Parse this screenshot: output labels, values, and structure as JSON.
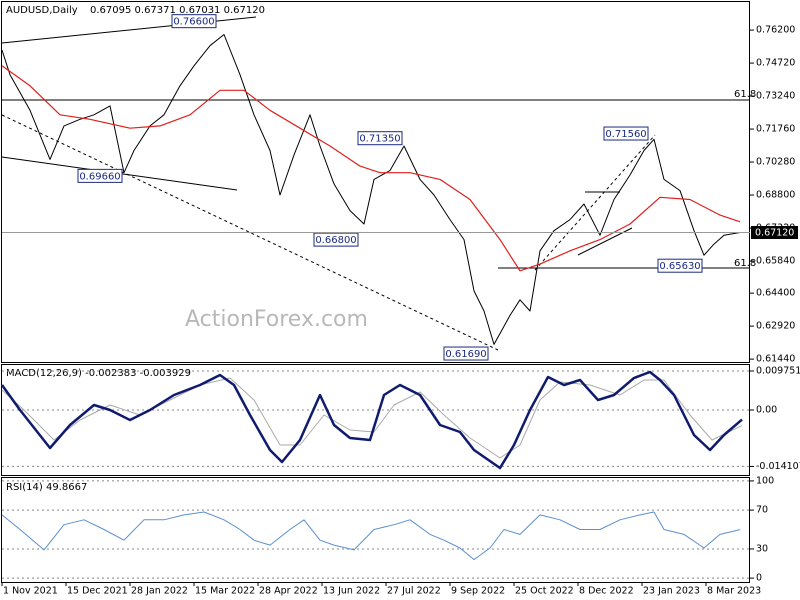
{
  "chart_data": [
    {
      "type": "line",
      "title": "AUDUSD,Daily",
      "subtitle": "0.67095 0.67371 0.67031 0.67120",
      "watermark": "ActionForex.com",
      "xlim": [
        0,
        374
      ],
      "ylim": [
        0.6131,
        0.7746
      ],
      "yticks": [
        {
          "value": 0.762,
          "label": "0.76200"
        },
        {
          "value": 0.7472,
          "label": "0.74720"
        },
        {
          "value": 0.7324,
          "label": "0.73240"
        },
        {
          "value": 0.7176,
          "label": "0.71760"
        },
        {
          "value": 0.7028,
          "label": "0.70280"
        },
        {
          "value": 0.688,
          "label": "0.68800"
        },
        {
          "value": 0.6732,
          "label": "0.67320"
        },
        {
          "value": 0.6584,
          "label": "0.65840"
        },
        {
          "value": 0.644,
          "label": "0.64400"
        },
        {
          "value": 0.6292,
          "label": "0.62920"
        },
        {
          "value": 0.6144,
          "label": "0.61440"
        }
      ],
      "grid": false,
      "series": [
        {
          "color": "#000000",
          "x": [
            0,
            4,
            14,
            24,
            31,
            39,
            46,
            54,
            61,
            66,
            74,
            81,
            89,
            96,
            104,
            111,
            119,
            126,
            134,
            139,
            146,
            154,
            159,
            166,
            174,
            181,
            186,
            194,
            201,
            209,
            216,
            224,
            231,
            236,
            241,
            246,
            254,
            259,
            264,
            269,
            276,
            284,
            291,
            299,
            306,
            314,
            321,
            326,
            331,
            339,
            346,
            351,
            356,
            361,
            369
          ],
          "values": [
            0.753,
            0.742,
            0.726,
            0.704,
            0.719,
            0.722,
            0.724,
            0.728,
            0.698,
            0.708,
            0.719,
            0.724,
            0.737,
            0.746,
            0.755,
            0.76,
            0.742,
            0.724,
            0.708,
            0.688,
            0.706,
            0.724,
            0.71,
            0.693,
            0.681,
            0.675,
            0.695,
            0.699,
            0.71,
            0.695,
            0.688,
            0.677,
            0.668,
            0.645,
            0.636,
            0.621,
            0.634,
            0.641,
            0.636,
            0.663,
            0.672,
            0.677,
            0.684,
            0.67,
            0.686,
            0.697,
            0.708,
            0.713,
            0.695,
            0.69,
            0.672,
            0.661,
            0.666,
            0.67,
            0.6712
          ]
        },
        {
          "color": "#e0201c",
          "x": [
            0,
            14,
            29,
            44,
            64,
            79,
            94,
            109,
            121,
            134,
            149,
            164,
            179,
            189,
            204,
            219,
            234,
            249,
            259,
            269,
            284,
            299,
            314,
            329,
            344,
            359,
            369
          ],
          "values": [
            0.746,
            0.737,
            0.724,
            0.722,
            0.718,
            0.719,
            0.724,
            0.735,
            0.735,
            0.726,
            0.718,
            0.71,
            0.701,
            0.698,
            0.698,
            0.695,
            0.686,
            0.668,
            0.654,
            0.657,
            0.663,
            0.668,
            0.675,
            0.687,
            0.686,
            0.679,
            0.676
          ]
        }
      ],
      "annotations": [
        {
          "x": 96,
          "value": 0.766,
          "label": "0.76600"
        },
        {
          "x": 49,
          "value": 0.6966,
          "label": "0.69660"
        },
        {
          "x": 189,
          "value": 0.7135,
          "label": "0.71350"
        },
        {
          "x": 167,
          "value": 0.668,
          "label": "0.66800"
        },
        {
          "x": 312,
          "value": 0.7156,
          "label": "0.71560"
        },
        {
          "x": 339,
          "value": 0.6563,
          "label": "0.65630"
        },
        {
          "x": 232,
          "value": 0.6169,
          "label": "0.61690"
        }
      ],
      "fib_labels": [
        "61.8",
        "61.8"
      ],
      "last": {
        "value": 0.6712,
        "label": "0.67120"
      }
    },
    {
      "type": "line",
      "title": "MACD(12,26,9) -0.002383 -0.003929",
      "xlim": [
        0,
        374
      ],
      "ylim": [
        -0.0165,
        0.01125
      ],
      "yticks": [
        0.009751,
        {
          "value": 0,
          "label": "0.00"
        },
        -0.014107
      ],
      "grid": "dashed",
      "series": [
        {
          "color": "#aaaaaa",
          "x": [
            0,
            11,
            26,
            39,
            54,
            69,
            84,
            99,
            114,
            126,
            139,
            149,
            161,
            174,
            186,
            196,
            209,
            221,
            234,
            249,
            259,
            269,
            279,
            294,
            309,
            321,
            331,
            344,
            355,
            370
          ],
          "values": [
            0.005,
            0,
            -0.0075,
            -0.0025,
            0.00125,
            -0.00125,
            0.0025,
            0.00625,
            0.008,
            0.0025,
            -0.00875,
            -0.00875,
            -0.00125,
            -0.005,
            -0.0055,
            0.00125,
            0.0045,
            -0.00125,
            -0.007,
            -0.012,
            -0.00875,
            0.0025,
            0.007,
            0.00625,
            0.00375,
            0.0075,
            0.0075,
            -0.00125,
            -0.0075,
            -0.0039
          ]
        },
        {
          "color": "#0f1b6e",
          "x": [
            0,
            9,
            24,
            34,
            46,
            54,
            64,
            74,
            86,
            99,
            109,
            116,
            124,
            134,
            140,
            149,
            159,
            166,
            174,
            184,
            191,
            199,
            209,
            219,
            229,
            236,
            249,
            256,
            264,
            273,
            281,
            289,
            298,
            306,
            316,
            324,
            329,
            336,
            346,
            354,
            361,
            370
          ],
          "values": [
            0.00625,
            0,
            -0.0095,
            -0.00375,
            0.00125,
            0,
            -0.0025,
            0,
            0.00375,
            0.00625,
            0.00875,
            0.00625,
            -0.00125,
            -0.01,
            -0.013,
            -0.0075,
            0.00375,
            -0.00375,
            -0.007,
            -0.0075,
            0.00375,
            0.00625,
            0.00375,
            -0.00375,
            -0.0055,
            -0.01,
            -0.0145,
            -0.00875,
            0,
            0.00825,
            0.00625,
            0.0075,
            0.0025,
            0.00375,
            0.008,
            0.0095,
            0.0075,
            0.00375,
            -0.00625,
            -0.01,
            -0.00625,
            -0.0024
          ]
        }
      ]
    },
    {
      "type": "line",
      "title": "RSI(14) 49.8667",
      "xlim": [
        0,
        374
      ],
      "ylim": [
        -4,
        103
      ],
      "yticks": [
        100,
        70,
        30,
        0
      ],
      "grid": "dashed",
      "xticks": [
        {
          "value": 0,
          "label": "1 Nov 2021"
        },
        {
          "value": 32,
          "label": "15 Dec 2021"
        },
        {
          "value": 64,
          "label": "28 Jan 2022"
        },
        {
          "value": 96,
          "label": "15 Mar 2022"
        },
        {
          "value": 128,
          "label": "28 Apr 2022"
        },
        {
          "value": 160,
          "label": "13 Jun 2022"
        },
        {
          "value": 192,
          "label": "27 Jul 2022"
        },
        {
          "value": 224,
          "label": "9 Sep 2022"
        },
        {
          "value": 256,
          "label": "25 Oct 2022"
        },
        {
          "value": 288,
          "label": "8 Dec 2022"
        },
        {
          "value": 320,
          "label": "23 Jan 2023"
        },
        {
          "value": 352,
          "label": "8 Mar 2023"
        }
      ],
      "series": [
        {
          "color": "#5b8fd0",
          "x": [
            0,
            9,
            21,
            31,
            41,
            51,
            61,
            71,
            81,
            91,
            101,
            111,
            119,
            126,
            134,
            144,
            151,
            159,
            166,
            176,
            186,
            196,
            204,
            214,
            221,
            229,
            236,
            244,
            251,
            259,
            269,
            279,
            289,
            299,
            309,
            319,
            326,
            331,
            341,
            351,
            359,
            369
          ],
          "values": [
            65,
            50,
            29,
            55,
            60,
            50,
            39,
            60,
            60,
            65,
            68,
            60,
            50,
            39,
            34,
            50,
            60,
            39,
            34,
            29,
            50,
            55,
            60,
            45,
            39,
            31,
            19,
            31,
            50,
            45,
            65,
            60,
            50,
            50,
            60,
            65,
            68,
            50,
            45,
            31,
            45,
            49.87
          ]
        }
      ]
    }
  ]
}
